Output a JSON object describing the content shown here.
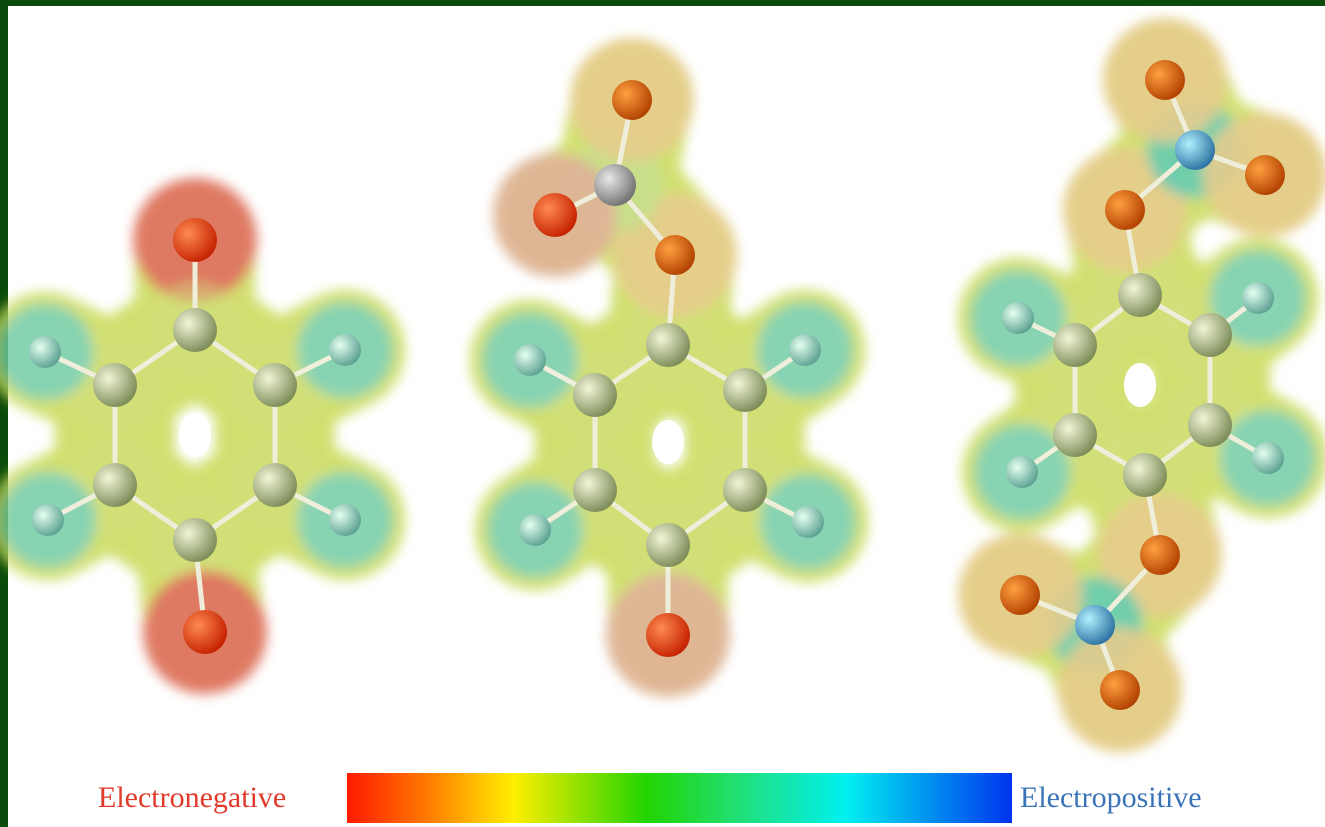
{
  "legend": {
    "left_label": "Electronegative",
    "right_label": "Electropositive"
  }
}
